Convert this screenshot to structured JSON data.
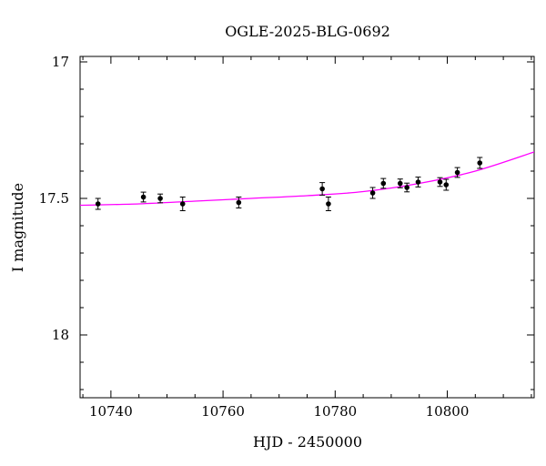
{
  "chart_data": {
    "type": "scatter",
    "title": "OGLE-2025-BLG-0692",
    "xlabel": "HJD - 2450000",
    "ylabel": "I magnitude",
    "xlim": [
      10734.5,
      10815.5
    ],
    "ylim": [
      17.0,
      17.75
    ],
    "y_inverted": true,
    "x_ticks_major": [
      10740,
      10760,
      10780,
      10800
    ],
    "x_ticks_minor_step": 5,
    "y_ticks_major": [
      17,
      17.5,
      18
    ],
    "y_ticks_minor_step": 0.1,
    "y_display_range": [
      16.98,
      18.23
    ],
    "grid": false,
    "series": [
      {
        "kind": "points",
        "color": "#000000",
        "points": [
          {
            "x": 10737.7,
            "y": 17.52,
            "err": 0.02
          },
          {
            "x": 10745.8,
            "y": 17.495,
            "err": 0.018
          },
          {
            "x": 10748.8,
            "y": 17.5,
            "err": 0.016
          },
          {
            "x": 10752.8,
            "y": 17.52,
            "err": 0.025
          },
          {
            "x": 10762.8,
            "y": 17.515,
            "err": 0.02
          },
          {
            "x": 10777.7,
            "y": 17.465,
            "err": 0.023
          },
          {
            "x": 10778.8,
            "y": 17.52,
            "err": 0.025
          },
          {
            "x": 10786.7,
            "y": 17.48,
            "err": 0.02
          },
          {
            "x": 10788.6,
            "y": 17.445,
            "err": 0.018
          },
          {
            "x": 10791.6,
            "y": 17.445,
            "err": 0.016
          },
          {
            "x": 10792.8,
            "y": 17.46,
            "err": 0.016
          },
          {
            "x": 10794.8,
            "y": 17.44,
            "err": 0.018
          },
          {
            "x": 10798.7,
            "y": 17.44,
            "err": 0.016
          },
          {
            "x": 10799.8,
            "y": 17.45,
            "err": 0.02
          },
          {
            "x": 10801.8,
            "y": 17.405,
            "err": 0.018
          },
          {
            "x": 10805.8,
            "y": 17.37,
            "err": 0.02
          }
        ]
      },
      {
        "kind": "model-line",
        "color": "#ff00ff",
        "points": [
          {
            "x": 10734.5,
            "y": 17.525
          },
          {
            "x": 10745,
            "y": 17.52
          },
          {
            "x": 10755,
            "y": 17.51
          },
          {
            "x": 10765,
            "y": 17.5
          },
          {
            "x": 10775,
            "y": 17.49
          },
          {
            "x": 10785,
            "y": 17.475
          },
          {
            "x": 10795,
            "y": 17.445
          },
          {
            "x": 10805,
            "y": 17.4
          },
          {
            "x": 10815.5,
            "y": 17.33
          }
        ]
      }
    ]
  }
}
